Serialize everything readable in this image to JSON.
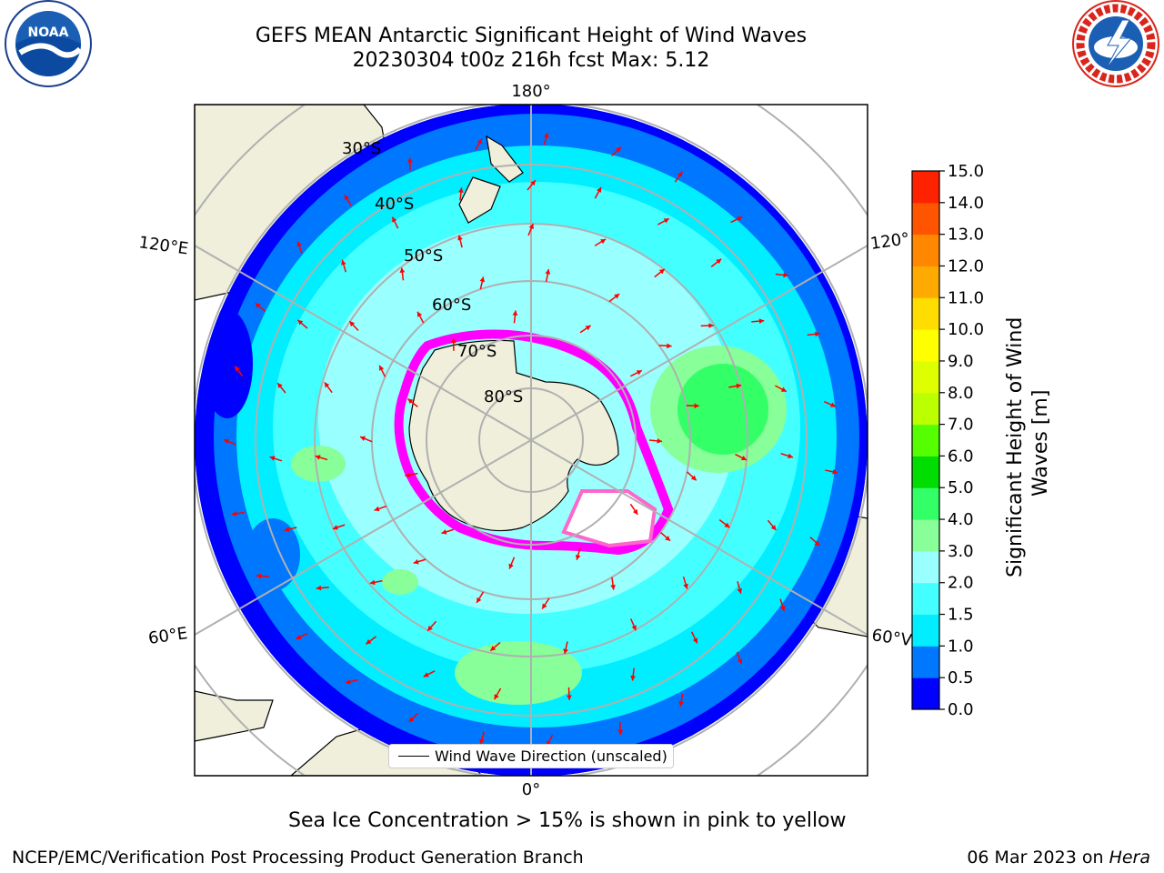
{
  "title": {
    "line1": "GEFS MEAN Antarctic Significant Height of Wind Waves",
    "line2": "20230304 t00z 216h fcst   Max: 5.12"
  },
  "logos": {
    "left": {
      "icon": "noaa-logo",
      "text": "NOAA"
    },
    "right": {
      "icon": "nws-logo",
      "text": "NATIONAL WEATHER SERVICE"
    }
  },
  "map": {
    "projection": "south-polar-stereographic",
    "longitude_labels": {
      "top": "180°",
      "bottom": "0°",
      "left_upper": "120°E",
      "left_lower": "60°E",
      "right_upper": "120°",
      "right_lower": "60°V"
    },
    "latitude_labels": [
      "30°S",
      "40°S",
      "50°S",
      "60°S",
      "70°S",
      "80°S"
    ],
    "colors": {
      "land": "#efefdc",
      "grid": "#b0b0b0",
      "arrow": "#ff0000",
      "sea_ice_low": "#ff00ff",
      "sea_ice_high": "#ffff00"
    },
    "max_wave_height_m": 5.12
  },
  "legend": {
    "label": "Wind Wave Direction (unscaled)"
  },
  "colorbar": {
    "label": "Significant Height of Wind Waves [m]",
    "label_line1": "Significant Height of Wind",
    "label_line2": "Waves [m]",
    "ticks": [
      "0.0",
      "0.5",
      "1.0",
      "1.5",
      "2.0",
      "3.0",
      "4.0",
      "5.0",
      "6.0",
      "7.0",
      "8.0",
      "9.0",
      "10.0",
      "11.0",
      "12.0",
      "13.0",
      "14.0",
      "15.0"
    ],
    "colors": [
      "#0000ff",
      "#0077ff",
      "#00eeff",
      "#44ffff",
      "#99ffff",
      "#88ff99",
      "#33ff66",
      "#00dd00",
      "#55ff00",
      "#bbff00",
      "#ddff00",
      "#ffff00",
      "#ffdd00",
      "#ffaa00",
      "#ff8800",
      "#ff5500",
      "#ff2200"
    ]
  },
  "footer": {
    "sea_ice_note": "Sea Ice Concentration > 15% is shown in pink to yellow",
    "credit": "NCEP/EMC/Verification Post Processing Product Generation Branch",
    "date": "06 Mar 2023 on",
    "host": "Hera"
  }
}
